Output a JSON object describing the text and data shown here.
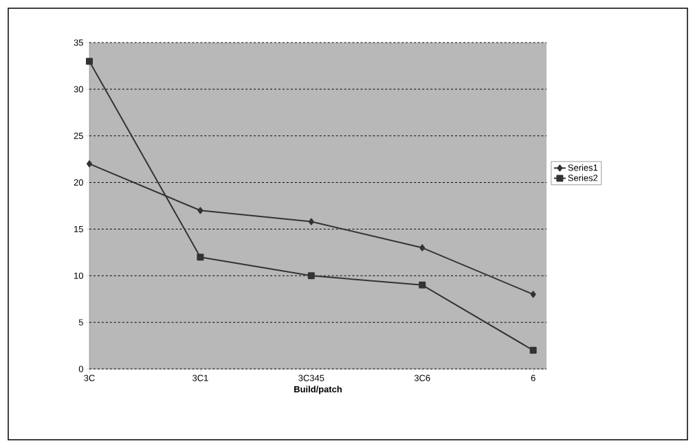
{
  "chart_data": {
    "type": "line",
    "xlabel": "Build/patch",
    "categories": [
      "3C",
      "3C1",
      "3C345",
      "3C6",
      "6"
    ],
    "series": [
      {
        "name": "Series1",
        "color": "#333333",
        "marker": "diamond",
        "values": [
          22,
          17,
          15.8,
          13,
          8
        ]
      },
      {
        "name": "Series2",
        "color": "#333333",
        "marker": "square",
        "values": [
          33,
          12,
          10,
          9,
          2
        ]
      }
    ],
    "ylim": [
      0,
      35
    ],
    "yticks": [
      0,
      5,
      10,
      15,
      20,
      25,
      30,
      35
    ],
    "grid": "y",
    "legend": "right",
    "line_style": "solid"
  }
}
